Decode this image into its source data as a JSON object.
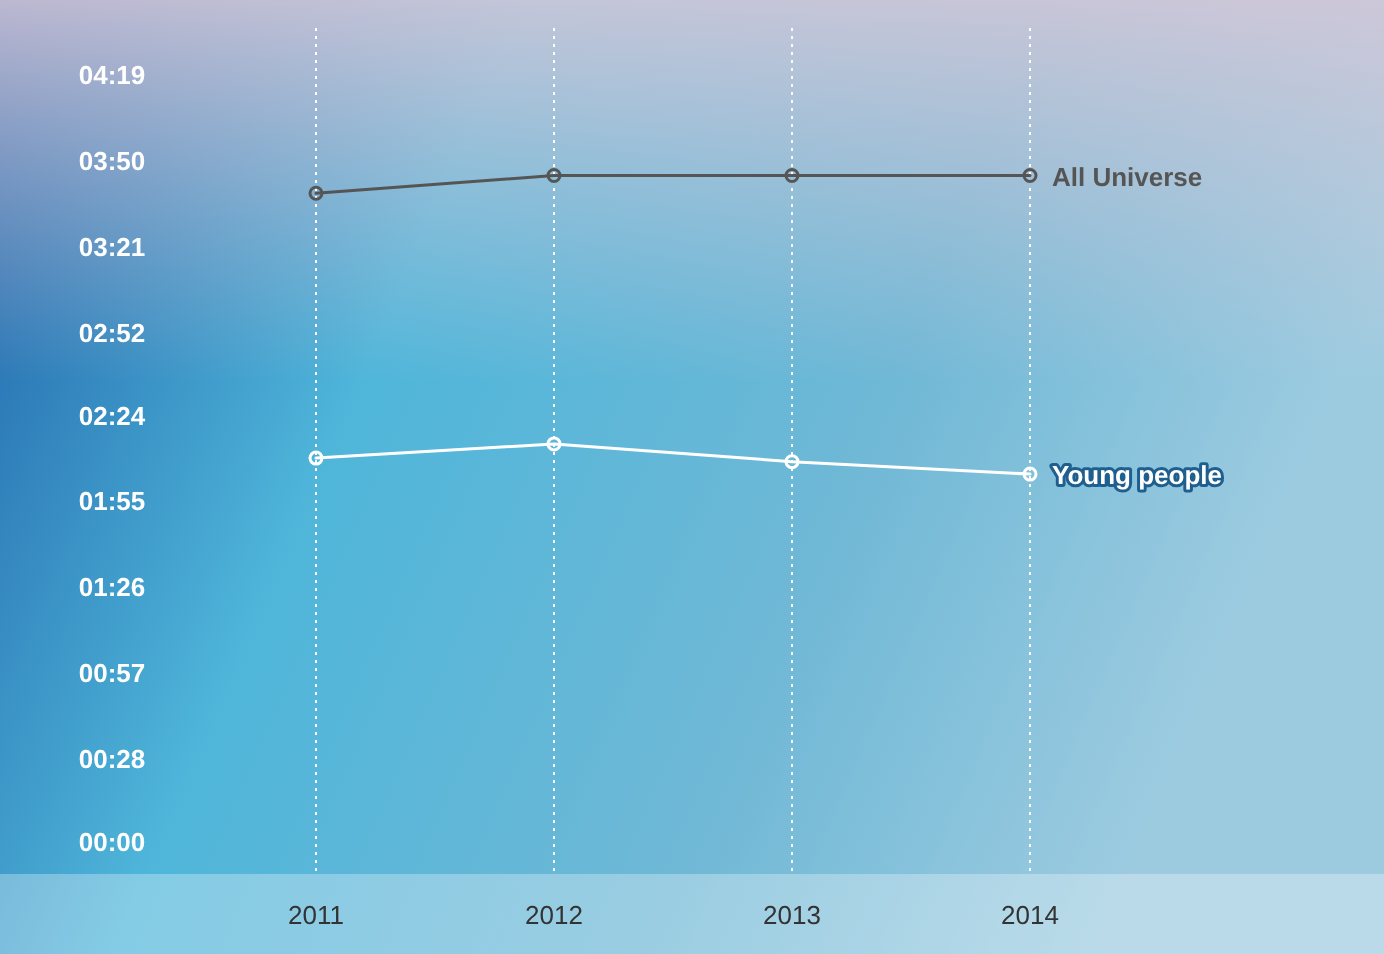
{
  "chart_data": {
    "type": "line",
    "categories": [
      "2011",
      "2012",
      "2013",
      "2014"
    ],
    "series": [
      {
        "name": "All Universe",
        "color": "#555555",
        "values": [
          3.65,
          3.75,
          3.75,
          3.75
        ]
      },
      {
        "name": "Young people",
        "color": "#ffffff",
        "values": [
          2.16,
          2.24,
          2.14,
          2.07
        ]
      }
    ],
    "ylim": [
      -0.18,
      4.58
    ],
    "yticks": [
      {
        "value": 0,
        "label": "00:00"
      },
      {
        "value": 0.4667,
        "label": "00:28"
      },
      {
        "value": 0.95,
        "label": "00:57"
      },
      {
        "value": 1.4333,
        "label": "01:26"
      },
      {
        "value": 1.9167,
        "label": "01:55"
      },
      {
        "value": 2.4,
        "label": "02:24"
      },
      {
        "value": 2.8667,
        "label": "02:52"
      },
      {
        "value": 3.35,
        "label": "03:21"
      },
      {
        "value": 3.8333,
        "label": "03:50"
      },
      {
        "value": 4.3167,
        "label": "04:19"
      }
    ],
    "grid": "x",
    "marker": "circle",
    "line_style": "solid",
    "legend": false
  }
}
